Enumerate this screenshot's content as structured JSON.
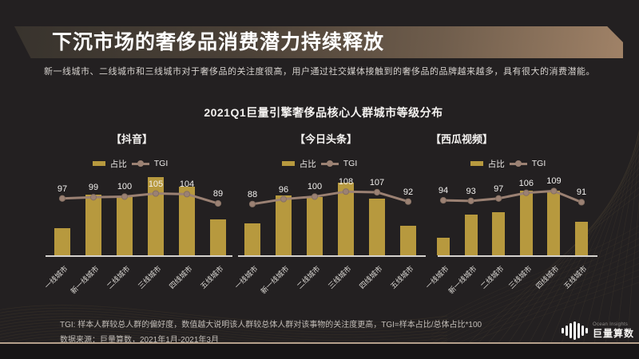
{
  "slide": {
    "title": "下沉市场的奢侈品消费潜力持续释放",
    "subtitle": "新一线城市、二线城市和三线城市对于奢侈品的关注度很高，用户通过社交媒体接触到的奢侈品的品牌越来越多，具有很大的消费潜能。",
    "section_title": "2021Q1巨量引擎奢侈品核心人群城市等级分布",
    "footnote": {
      "line1": "TGI: 样本人群较总人群的偏好度，数值越大说明该人群较总体人群对该事物的关注度更高，TGI=样本占比/总体占比*100",
      "line2": "数据来源：巨量算数，2021年1月-2021年3月"
    },
    "logo": {
      "brand_en": "Ocean Insights",
      "brand_cn": "巨量算数"
    }
  },
  "legend": {
    "bar_label": "占比",
    "line_label": "TGI"
  },
  "colors": {
    "background": "#232021",
    "bar": "#b7993e",
    "line": "#9b8173",
    "banner_dark": "#38332d",
    "banner_light": "#a08267",
    "divider": "#b5a08b"
  },
  "chart_data": [
    {
      "type": "bar",
      "title": "【抖音】",
      "categories": [
        "一线城市",
        "新一线城市",
        "二线城市",
        "三线城市",
        "四线城市",
        "五线城市"
      ],
      "legend": [
        "占比",
        "TGI"
      ],
      "series": [
        {
          "name": "占比",
          "type": "bar",
          "unit": "relative height (bars unlabeled in source, estimated)",
          "values": [
            34,
            76,
            73,
            98,
            86,
            45
          ]
        },
        {
          "name": "TGI",
          "type": "line",
          "values": [
            97,
            99,
            100,
            105,
            104,
            89
          ]
        }
      ]
    },
    {
      "type": "bar",
      "title": "【今日头条】",
      "categories": [
        "一线城市",
        "新一线城市",
        "二线城市",
        "三线城市",
        "四线城市",
        "五线城市"
      ],
      "legend": [
        "占比",
        "TGI"
      ],
      "series": [
        {
          "name": "占比",
          "type": "bar",
          "unit": "relative height (bars unlabeled in source, estimated)",
          "values": [
            40,
            75,
            73,
            91,
            71,
            37
          ]
        },
        {
          "name": "TGI",
          "type": "line",
          "values": [
            88,
            96,
            100,
            108,
            107,
            92
          ]
        }
      ]
    },
    {
      "type": "bar",
      "title": "【西瓜视频】",
      "categories": [
        "一线城市",
        "新一线城市",
        "二线城市",
        "三线城市",
        "四线城市",
        "五线城市"
      ],
      "legend": [
        "占比",
        "TGI"
      ],
      "series": [
        {
          "name": "占比",
          "type": "bar",
          "unit": "relative height (bars unlabeled in source, estimated)",
          "values": [
            22,
            51,
            54,
            81,
            81,
            42
          ]
        },
        {
          "name": "TGI",
          "type": "line",
          "values": [
            94,
            93,
            97,
            106,
            109,
            91
          ]
        }
      ]
    }
  ]
}
